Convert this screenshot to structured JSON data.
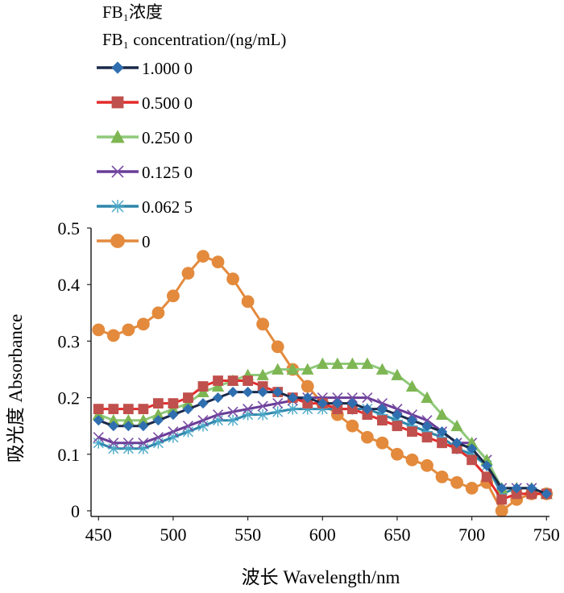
{
  "chart_data": {
    "type": "line",
    "legend_title_line1": "FB₁浓度",
    "legend_title_line2": "FB₁ concentration/(ng/mL)",
    "xlabel": "波长 Wavelength/nm",
    "ylabel": "吸光度 Absorbance",
    "xlim": [
      445,
      752
    ],
    "ylim": [
      -0.01,
      0.5
    ],
    "x_ticks": [
      450,
      500,
      550,
      600,
      650,
      700,
      750
    ],
    "x_tick_labels": [
      "450",
      "500",
      "550",
      "600",
      "650",
      "700",
      "750"
    ],
    "y_ticks": [
      0,
      0.1,
      0.2,
      0.3,
      0.4,
      0.5
    ],
    "y_tick_labels": [
      "0",
      "0.1",
      "0.2",
      "0.3",
      "0.4",
      "0.5"
    ],
    "legend_position": "top-left",
    "series": [
      {
        "name": "1.000 0",
        "color": "#2f6fb0",
        "line_color": "#1a2a4a",
        "marker": "diamond",
        "x": [
          450,
          460,
          470,
          480,
          490,
          500,
          510,
          520,
          530,
          540,
          550,
          560,
          570,
          580,
          590,
          600,
          610,
          620,
          630,
          640,
          650,
          660,
          670,
          680,
          690,
          700,
          710,
          720,
          730,
          740,
          750
        ],
        "y": [
          0.16,
          0.15,
          0.15,
          0.15,
          0.16,
          0.17,
          0.18,
          0.19,
          0.2,
          0.21,
          0.21,
          0.21,
          0.21,
          0.2,
          0.2,
          0.19,
          0.19,
          0.19,
          0.18,
          0.18,
          0.17,
          0.16,
          0.15,
          0.14,
          0.12,
          0.11,
          0.08,
          0.04,
          0.04,
          0.04,
          0.03
        ]
      },
      {
        "name": "0.500 0",
        "color": "#c0504d",
        "line_color": "#e32b2b",
        "marker": "square",
        "x": [
          450,
          460,
          470,
          480,
          490,
          500,
          510,
          520,
          530,
          540,
          550,
          560,
          570,
          580,
          590,
          600,
          610,
          620,
          630,
          640,
          650,
          660,
          670,
          680,
          690,
          700,
          710,
          720,
          730,
          740,
          750
        ],
        "y": [
          0.18,
          0.18,
          0.18,
          0.18,
          0.19,
          0.19,
          0.2,
          0.22,
          0.23,
          0.23,
          0.23,
          0.22,
          0.21,
          0.2,
          0.19,
          0.19,
          0.18,
          0.18,
          0.17,
          0.16,
          0.15,
          0.14,
          0.13,
          0.12,
          0.11,
          0.09,
          0.06,
          0.02,
          0.03,
          0.03,
          0.03
        ]
      },
      {
        "name": "0.250 0",
        "color": "#7eb653",
        "line_color": "#8fc97a",
        "marker": "triangle",
        "x": [
          450,
          460,
          470,
          480,
          490,
          500,
          510,
          520,
          530,
          540,
          550,
          560,
          570,
          580,
          590,
          600,
          610,
          620,
          630,
          640,
          650,
          660,
          670,
          680,
          690,
          700,
          710,
          720,
          730,
          740,
          750
        ],
        "y": [
          0.17,
          0.16,
          0.16,
          0.16,
          0.17,
          0.18,
          0.19,
          0.21,
          0.22,
          0.23,
          0.24,
          0.24,
          0.25,
          0.25,
          0.25,
          0.26,
          0.26,
          0.26,
          0.26,
          0.25,
          0.24,
          0.22,
          0.2,
          0.17,
          0.15,
          0.12,
          0.09,
          0.04,
          0.04,
          0.04,
          0.03
        ]
      },
      {
        "name": "0.125 0",
        "color": "#7a4ea3",
        "line_color": "#6a3d99",
        "marker": "x",
        "x": [
          450,
          460,
          470,
          480,
          490,
          500,
          510,
          520,
          530,
          540,
          550,
          560,
          570,
          580,
          590,
          600,
          610,
          620,
          630,
          640,
          650,
          660,
          670,
          680,
          690,
          700,
          710,
          720,
          730,
          740,
          750
        ],
        "y": [
          0.13,
          0.12,
          0.12,
          0.12,
          0.13,
          0.14,
          0.15,
          0.16,
          0.17,
          0.175,
          0.18,
          0.185,
          0.19,
          0.195,
          0.2,
          0.2,
          0.2,
          0.2,
          0.2,
          0.19,
          0.18,
          0.17,
          0.16,
          0.14,
          0.12,
          0.12,
          0.09,
          0.04,
          0.04,
          0.04,
          0.03
        ]
      },
      {
        "name": "0.062 5",
        "color": "#4aa8c7",
        "line_color": "#2e86ab",
        "marker": "asterisk",
        "x": [
          450,
          460,
          470,
          480,
          490,
          500,
          510,
          520,
          530,
          540,
          550,
          560,
          570,
          580,
          590,
          600,
          610,
          620,
          630,
          640,
          650,
          660,
          670,
          680,
          690,
          700,
          710,
          720,
          730,
          740,
          750
        ],
        "y": [
          0.12,
          0.11,
          0.11,
          0.11,
          0.12,
          0.13,
          0.14,
          0.15,
          0.16,
          0.16,
          0.17,
          0.17,
          0.175,
          0.18,
          0.18,
          0.18,
          0.18,
          0.18,
          0.18,
          0.17,
          0.16,
          0.15,
          0.14,
          0.13,
          0.11,
          0.1,
          0.08,
          0.03,
          0.04,
          0.04,
          0.03
        ]
      },
      {
        "name": "0",
        "color": "#e38a3d",
        "line_color": "#e38a3d",
        "marker": "circle",
        "x": [
          450,
          460,
          470,
          480,
          490,
          500,
          510,
          520,
          530,
          540,
          550,
          560,
          570,
          580,
          590,
          600,
          610,
          620,
          630,
          640,
          650,
          660,
          670,
          680,
          690,
          700,
          710,
          720,
          730,
          740,
          750
        ],
        "y": [
          0.32,
          0.31,
          0.32,
          0.33,
          0.35,
          0.38,
          0.42,
          0.45,
          0.44,
          0.41,
          0.37,
          0.33,
          0.29,
          0.25,
          0.22,
          0.19,
          0.17,
          0.15,
          0.13,
          0.12,
          0.1,
          0.09,
          0.08,
          0.06,
          0.05,
          0.04,
          0.05,
          0.0,
          0.02,
          0.03,
          0.03
        ]
      }
    ]
  }
}
